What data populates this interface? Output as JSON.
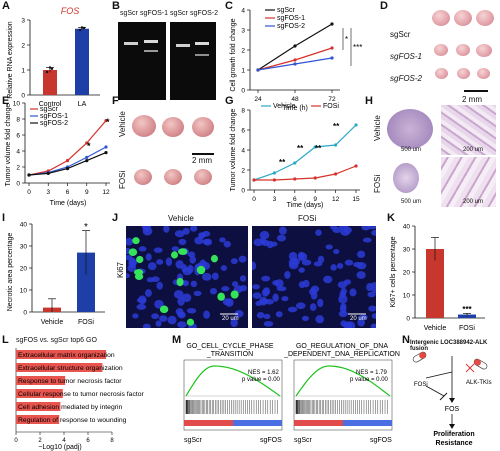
{
  "figure": {
    "panel_labels": [
      "A",
      "B",
      "C",
      "D",
      "E",
      "F",
      "G",
      "H",
      "I",
      "J",
      "K",
      "L",
      "M",
      "N"
    ]
  },
  "panelA": {
    "title": "FOS",
    "ylabel": "Relative RNA expression",
    "chart_data": {
      "type": "bar",
      "categories": [
        "Control",
        "LA"
      ],
      "values": [
        1.0,
        2.65
      ],
      "errors": [
        0.1,
        0.05
      ],
      "ylim": [
        0,
        3
      ],
      "yticks": [
        "0",
        "1",
        "2",
        "3"
      ],
      "colors": [
        "#c8372d",
        "#1f3fa8"
      ]
    }
  },
  "panelB": {
    "lanes": [
      "sgScr",
      "sgFOS-1",
      "sgScr",
      "sgFOS-2"
    ]
  },
  "panelC": {
    "ylabel": "Cell growth fold change",
    "xlabel": "Time (h)",
    "sig": [
      "*",
      "***"
    ],
    "chart_data": {
      "type": "line",
      "x": [
        24,
        48,
        72
      ],
      "xticks": [
        "24",
        "48",
        "72"
      ],
      "ylim": [
        0,
        4
      ],
      "yticks": [
        "0",
        "1",
        "2",
        "3",
        "4"
      ],
      "series": [
        {
          "name": "sgScr",
          "values": [
            1.0,
            2.2,
            3.3
          ],
          "color": "#111111"
        },
        {
          "name": "sgFOS-1",
          "values": [
            1.0,
            1.5,
            2.1
          ],
          "color": "#d7312b"
        },
        {
          "name": "sgFOS-2",
          "values": [
            1.0,
            1.3,
            1.6
          ],
          "color": "#2f55d4"
        }
      ]
    }
  },
  "panelD": {
    "rows": [
      "sgScr",
      "sgFOS-1",
      "sgFOS-2"
    ],
    "scale": "2 mm"
  },
  "panelE": {
    "ylabel": "Tumor volume fold change",
    "xlabel": "Time (days)",
    "sig": [
      "*",
      "*"
    ],
    "chart_data": {
      "type": "line",
      "x": [
        0,
        3,
        6,
        9,
        12
      ],
      "xticks": [
        "0",
        "3",
        "6",
        "9",
        "12"
      ],
      "ylim": [
        0,
        10
      ],
      "yticks": [
        "0",
        "2",
        "4",
        "6",
        "8",
        "10"
      ],
      "series": [
        {
          "name": "sgScr",
          "values": [
            1.0,
            1.5,
            2.8,
            5.0,
            7.8
          ],
          "color": "#d7312b"
        },
        {
          "name": "sgFOS-1",
          "values": [
            1.0,
            1.3,
            2.0,
            3.2,
            4.5
          ],
          "color": "#2f55d4"
        },
        {
          "name": "sgFOS-2",
          "values": [
            1.0,
            1.2,
            1.8,
            2.8,
            3.8
          ],
          "color": "#111111"
        }
      ]
    }
  },
  "panelF": {
    "rows": [
      "Vehicle",
      "FOSi"
    ],
    "scale": "2 mm"
  },
  "panelG": {
    "ylabel": "Tumor volume fold change",
    "xlabel": "Time (days)",
    "sig": [
      "**",
      "**",
      "**",
      "**"
    ],
    "chart_data": {
      "type": "line",
      "x": [
        0,
        3,
        6,
        9,
        12,
        15
      ],
      "xticks": [
        "0",
        "3",
        "6",
        "9",
        "12",
        "15"
      ],
      "ylim": [
        0,
        8
      ],
      "yticks": [
        "0",
        "2",
        "4",
        "6",
        "8"
      ],
      "series": [
        {
          "name": "Vehicle",
          "values": [
            1.0,
            1.7,
            2.7,
            4.3,
            4.5,
            6.5
          ],
          "color": "#2aa8c8"
        },
        {
          "name": "FOSi",
          "values": [
            1.0,
            1.0,
            1.1,
            1.2,
            1.6,
            2.4
          ],
          "color": "#d7312b"
        }
      ]
    }
  },
  "panelH": {
    "rows": [
      "Vehicle",
      "FOSi"
    ],
    "scales": [
      "500 um",
      "200 um",
      "500 um",
      "200 um"
    ]
  },
  "panelI": {
    "ylabel": "Necrotic area percentage",
    "sig": "*",
    "chart_data": {
      "type": "bar",
      "categories": [
        "Vehicle",
        "FOSi"
      ],
      "values": [
        2,
        27
      ],
      "errors": [
        4,
        10
      ],
      "ylim": [
        0,
        40
      ],
      "yticks": [
        "0",
        "10",
        "20",
        "30",
        "40"
      ],
      "colors": [
        "#c8372d",
        "#1f3fa8"
      ]
    }
  },
  "panelJ": {
    "titles": [
      "Vehicle",
      "FOSi"
    ],
    "marker": "Ki67",
    "scale": "20 um"
  },
  "panelK": {
    "ylabel": "Ki67+ cells percentage",
    "sig": "***",
    "chart_data": {
      "type": "bar",
      "categories": [
        "Vehicle",
        "FOSi"
      ],
      "values": [
        30,
        1.5
      ],
      "errors": [
        5,
        0.5
      ],
      "ylim": [
        0,
        40
      ],
      "yticks": [
        "0",
        "10",
        "20",
        "30",
        "40"
      ],
      "colors": [
        "#c8372d",
        "#1f3fa8"
      ]
    }
  },
  "panelL": {
    "caption_left": "sgFOS vs. sgScr top6 GO",
    "xlabel": "−Log10 (padj)",
    "chart_data": {
      "type": "bar",
      "categories": [
        "Extracellular matrix organization",
        "Extracellular structure organization",
        "Response to tumor necrosis factor",
        "Cellular response to tumor necrosis factor",
        "Cell adhesion mediated by integrin",
        "Regulation of response to wounding"
      ],
      "values": [
        7.5,
        7.2,
        4.1,
        3.9,
        3.7,
        3.6
      ],
      "xlim": [
        0,
        8
      ],
      "xticks": [
        "0",
        "2",
        "4",
        "6",
        "8"
      ],
      "color": "#e8544e"
    }
  },
  "panelM": {
    "plots": [
      {
        "title": "GO_CELL_CYCLE_PHASE_TRANSITION",
        "title1": "GO_CELL_CYCLE_PHASE",
        "title2": "_TRANSITION",
        "nes": "NES = 1.62",
        "pval": "p value = 0.00",
        "left": "sgScr",
        "right": "sgFOS"
      },
      {
        "title": "GO_REGULATION_OF_DNA_DEPENDENT_DNA_REPLICATION",
        "title1": "GO_REGULATION_OF_DNA",
        "title2": "_DEPENDENT_DNA_REPLICATION",
        "nes": "NES = 1.79",
        "pval": "p value = 0.00",
        "left": "sgScr",
        "right": "sgFOS"
      }
    ]
  },
  "panelN": {
    "title": "Intergenic LOC388942-ALK fusion",
    "fosi": "FOSi",
    "alk": "ALK-TKIs",
    "fos": "FOS",
    "out1": "Proliferation",
    "out2": "Resistance"
  }
}
